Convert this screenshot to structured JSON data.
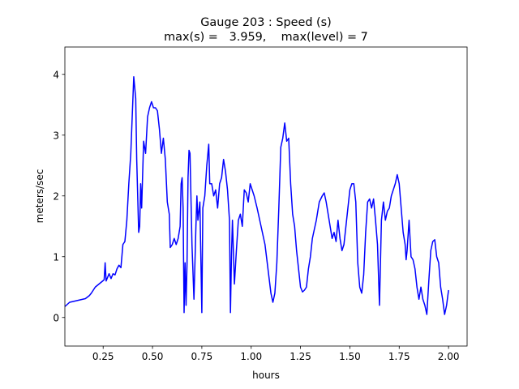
{
  "chart_data": {
    "type": "line",
    "title": "Gauge 203 : Speed (s)",
    "subtitle": "max(s) =   3.959,    max(level) = 7",
    "xlabel": "hours",
    "ylabel": "meters/sec",
    "xlim": [
      0.056,
      2.094
    ],
    "ylim": [
      -0.47,
      4.45
    ],
    "xticks": [
      0.25,
      {
        "value": 0.5,
        "label": "0.50"
      },
      0.75,
      {
        "value": 1,
        "label": "1.00"
      },
      1.25,
      {
        "value": 1.5,
        "label": "1.50"
      },
      1.75,
      {
        "value": 2,
        "label": "2.00"
      }
    ],
    "yticks": [
      0,
      1,
      2,
      3,
      4
    ],
    "series": [
      {
        "color": "#0000ff",
        "x": [
          0.056,
          0.08,
          0.12,
          0.16,
          0.18,
          0.19,
          0.21,
          0.24,
          0.255,
          0.26,
          0.265,
          0.28,
          0.29,
          0.3,
          0.31,
          0.32,
          0.33,
          0.34,
          0.35,
          0.36,
          0.37,
          0.38,
          0.39,
          0.405,
          0.415,
          0.42,
          0.43,
          0.435,
          0.44,
          0.445,
          0.455,
          0.465,
          0.475,
          0.485,
          0.495,
          0.505,
          0.515,
          0.525,
          0.535,
          0.545,
          0.555,
          0.565,
          0.575,
          0.585,
          0.59,
          0.6,
          0.61,
          0.62,
          0.63,
          0.64,
          0.645,
          0.65,
          0.655,
          0.66,
          0.665,
          0.67,
          0.675,
          0.68,
          0.685,
          0.69,
          0.7,
          0.71,
          0.72,
          0.725,
          0.73,
          0.74,
          0.75,
          0.755,
          0.765,
          0.775,
          0.785,
          0.79,
          0.8,
          0.81,
          0.82,
          0.83,
          0.84,
          0.85,
          0.86,
          0.87,
          0.88,
          0.89,
          0.895,
          0.9,
          0.905,
          0.915,
          0.925,
          0.935,
          0.945,
          0.955,
          0.965,
          0.975,
          0.985,
          0.995,
          1.005,
          1.015,
          1.03,
          1.05,
          1.07,
          1.085,
          1.1,
          1.11,
          1.12,
          1.13,
          1.14,
          1.15,
          1.16,
          1.17,
          1.18,
          1.19,
          1.2,
          1.21,
          1.22,
          1.23,
          1.24,
          1.25,
          1.26,
          1.27,
          1.28,
          1.29,
          1.3,
          1.31,
          1.33,
          1.345,
          1.36,
          1.37,
          1.38,
          1.39,
          1.4,
          1.41,
          1.42,
          1.43,
          1.44,
          1.45,
          1.46,
          1.47,
          1.48,
          1.49,
          1.5,
          1.51,
          1.52,
          1.53,
          1.54,
          1.55,
          1.56,
          1.57,
          1.58,
          1.59,
          1.6,
          1.61,
          1.62,
          1.63,
          1.64,
          1.65,
          1.66,
          1.67,
          1.68,
          1.69,
          1.7,
          1.71,
          1.72,
          1.73,
          1.74,
          1.75,
          1.76,
          1.77,
          1.78,
          1.785,
          1.79,
          1.8,
          1.81,
          1.82,
          1.83,
          1.84,
          1.85,
          1.86,
          1.87,
          1.88,
          1.89,
          1.9,
          1.91,
          1.92,
          1.93,
          1.94,
          1.95,
          1.96,
          1.97,
          1.98,
          1.99,
          2.0
        ],
        "values": [
          0.18,
          0.25,
          0.28,
          0.31,
          0.36,
          0.4,
          0.5,
          0.58,
          0.62,
          0.9,
          0.6,
          0.72,
          0.64,
          0.72,
          0.7,
          0.8,
          0.86,
          0.82,
          1.2,
          1.25,
          1.6,
          2.2,
          2.7,
          3.96,
          3.6,
          2.6,
          1.4,
          1.5,
          2.2,
          1.8,
          2.9,
          2.7,
          3.3,
          3.45,
          3.55,
          3.45,
          3.45,
          3.4,
          3.1,
          2.7,
          2.95,
          2.6,
          1.9,
          1.7,
          1.15,
          1.2,
          1.3,
          1.2,
          1.3,
          1.5,
          2.2,
          2.3,
          1.8,
          0.08,
          0.9,
          0.2,
          0.9,
          2.3,
          2.75,
          2.7,
          1.2,
          0.3,
          1.5,
          2.0,
          1.6,
          1.9,
          0.08,
          1.8,
          2.0,
          2.5,
          2.85,
          2.2,
          2.2,
          2.0,
          2.1,
          1.8,
          2.2,
          2.3,
          2.6,
          2.4,
          2.1,
          1.6,
          0.08,
          1.0,
          1.6,
          0.55,
          1.1,
          1.6,
          1.7,
          1.5,
          2.1,
          2.05,
          1.9,
          2.2,
          2.1,
          2.0,
          1.8,
          1.5,
          1.2,
          0.8,
          0.4,
          0.25,
          0.4,
          0.9,
          1.8,
          2.8,
          2.95,
          3.2,
          2.9,
          2.95,
          2.2,
          1.7,
          1.5,
          1.1,
          0.8,
          0.5,
          0.42,
          0.45,
          0.5,
          0.8,
          1.0,
          1.3,
          1.6,
          1.9,
          2.0,
          2.05,
          1.9,
          1.7,
          1.5,
          1.3,
          1.4,
          1.25,
          1.6,
          1.3,
          1.1,
          1.2,
          1.5,
          1.8,
          2.1,
          2.2,
          2.2,
          1.9,
          0.9,
          0.5,
          0.4,
          0.7,
          1.4,
          1.9,
          1.95,
          1.8,
          1.95,
          1.6,
          1.2,
          0.2,
          1.6,
          1.9,
          1.6,
          1.75,
          1.8,
          2.0,
          2.1,
          2.2,
          2.35,
          2.2,
          1.8,
          1.4,
          1.2,
          0.95,
          1.1,
          1.6,
          1.0,
          0.95,
          0.8,
          0.5,
          0.3,
          0.5,
          0.3,
          0.2,
          0.05,
          0.6,
          1.1,
          1.25,
          1.28,
          1.0,
          0.9,
          0.5,
          0.3,
          0.05,
          0.2,
          0.45
        ]
      }
    ]
  }
}
